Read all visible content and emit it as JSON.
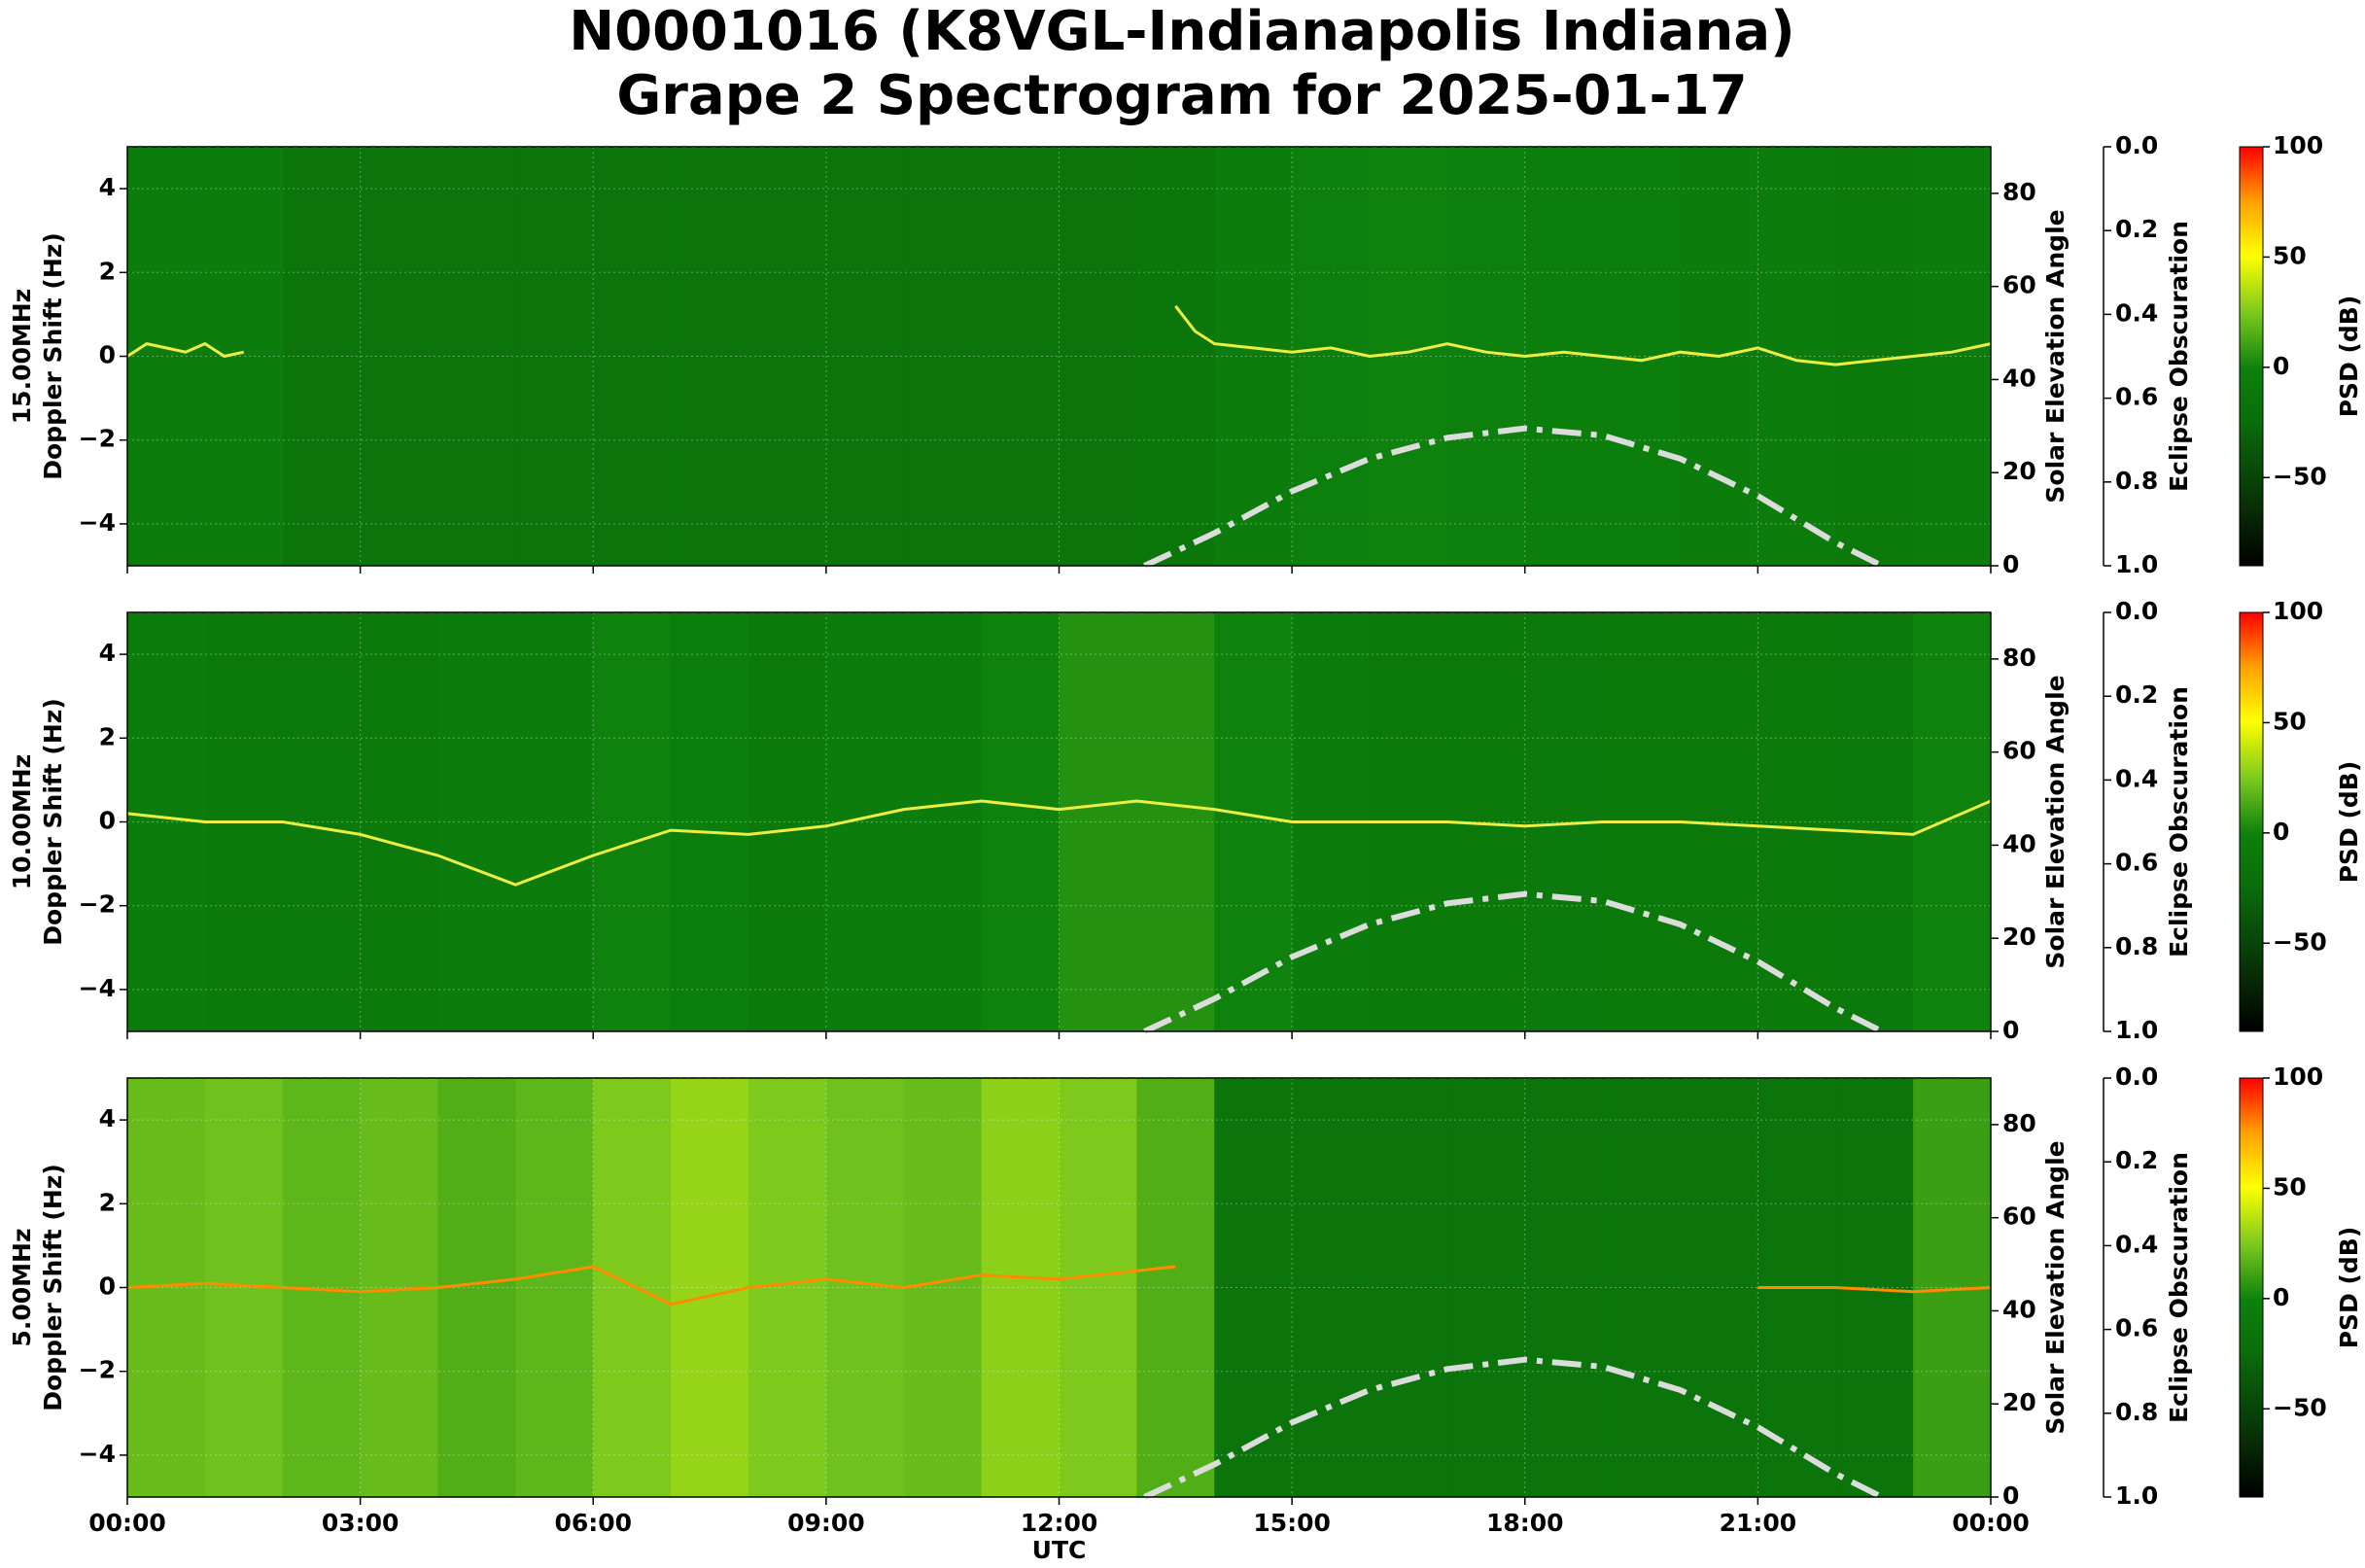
{
  "chart_data": [
    {
      "type": "spectrogram",
      "title": "N0001016 (K8VGL-Indianapolis Indiana)",
      "subtitle": "Grape 2 Spectrogram for 2025-01-17",
      "freq_label": "15.00MHz",
      "ylabel": "Doppler Shift (Hz)",
      "y2label": "Solar Elevation Angle",
      "y3label": "Eclipse Obscuration",
      "clabel": "PSD (dB)",
      "xlim": [
        0,
        24
      ],
      "ylim": [
        -5,
        5
      ],
      "yticks": [
        {
          "value": -4,
          "label": "−4"
        },
        {
          "value": -2,
          "label": "−2"
        },
        0,
        2,
        4
      ],
      "y2lim": [
        0,
        90
      ],
      "y2ticks": [
        0,
        20,
        40,
        60,
        80
      ],
      "y3lim": [
        1,
        0
      ],
      "y3ticks": [
        {
          "value": 0,
          "label": "0.0"
        },
        0.2,
        0.4,
        0.6,
        0.8,
        {
          "value": 1,
          "label": "1.0"
        }
      ],
      "clim": [
        -90,
        100
      ],
      "cticks": [
        {
          "value": -50,
          "label": "−50"
        },
        0,
        50,
        100
      ],
      "psd_bins": [
        0,
        1,
        2,
        3,
        4,
        5,
        6,
        7,
        8,
        9,
        10,
        11,
        12,
        13,
        14,
        15,
        16,
        17,
        18,
        19,
        20,
        21,
        22,
        23,
        24
      ],
      "psd": [
        -5,
        -5,
        -15,
        -15,
        -15,
        -15,
        -15,
        -15,
        -15,
        -15,
        -15,
        -15,
        -15,
        -12,
        -5,
        -2,
        0,
        -2,
        -3,
        -3,
        -5,
        -5,
        -8,
        -5
      ],
      "trace": {
        "color": "#eeee40",
        "x": [
          0,
          0.25,
          0.5,
          0.75,
          1,
          1.25,
          1.5,
          1.6,
          13.5,
          13.75,
          14,
          14.5,
          15,
          15.5,
          16,
          16.5,
          17,
          17.5,
          18,
          18.5,
          19,
          19.5,
          20,
          20.5,
          21,
          21.5,
          22,
          22.5,
          23,
          23.5,
          24
        ],
        "values": [
          0,
          0.3,
          0.2,
          0.1,
          0.3,
          0,
          0.1,
          null,
          1.2,
          0.6,
          0.3,
          0.2,
          0.1,
          0.2,
          0,
          0.1,
          0.3,
          0.1,
          0,
          0.1,
          0,
          -0.1,
          0.1,
          0,
          0.2,
          -0.1,
          -0.2,
          -0.1,
          0,
          0.1,
          0.3
        ]
      },
      "solar_elevation": {
        "color": "#dcdcdc",
        "x": [
          13.1,
          14,
          15,
          16,
          17,
          18,
          19,
          20,
          21,
          22,
          22.6
        ],
        "values": [
          0,
          7,
          16,
          23,
          27.5,
          29.5,
          28,
          23,
          15,
          5,
          0
        ]
      },
      "eclipse_obscuration": {
        "color": "#bbbbbb",
        "x": [
          0,
          24
        ],
        "values": [
          0,
          0
        ]
      }
    },
    {
      "type": "spectrogram",
      "freq_label": "10.00MHz",
      "ylabel": "Doppler Shift (Hz)",
      "y2label": "Solar Elevation Angle",
      "y3label": "Eclipse Obscuration",
      "clabel": "PSD (dB)",
      "xlim": [
        0,
        24
      ],
      "ylim": [
        -5,
        5
      ],
      "yticks": [
        {
          "value": -4,
          "label": "−4"
        },
        {
          "value": -2,
          "label": "−2"
        },
        0,
        2,
        4
      ],
      "y2lim": [
        0,
        90
      ],
      "y2ticks": [
        0,
        20,
        40,
        60,
        80
      ],
      "y3lim": [
        1,
        0
      ],
      "y3ticks": [
        {
          "value": 0,
          "label": "0.0"
        },
        0.2,
        0.4,
        0.6,
        0.8,
        {
          "value": 1,
          "label": "1.0"
        }
      ],
      "clim": [
        -90,
        100
      ],
      "cticks": [
        {
          "value": -50,
          "label": "−50"
        },
        0,
        50,
        100
      ],
      "psd_bins": [
        0,
        1,
        2,
        3,
        4,
        5,
        6,
        7,
        8,
        9,
        10,
        11,
        12,
        13,
        14,
        15,
        16,
        17,
        18,
        19,
        20,
        21,
        22,
        23,
        24
      ],
      "psd": [
        -5,
        -8,
        -10,
        -8,
        -5,
        -5,
        0,
        -3,
        -8,
        -5,
        -5,
        0,
        5,
        5,
        0,
        -5,
        -8,
        -8,
        -10,
        -8,
        -8,
        -8,
        -10,
        0
      ],
      "trace": {
        "color": "#eeee40",
        "x": [
          0,
          1,
          2,
          3,
          4,
          5,
          6,
          7,
          8,
          9,
          10,
          11,
          12,
          13,
          14,
          15,
          16,
          17,
          18,
          19,
          20,
          21,
          22,
          23,
          24
        ],
        "values": [
          0.2,
          0,
          0,
          -0.3,
          -0.8,
          -1.5,
          -0.8,
          -0.2,
          -0.3,
          -0.1,
          0.3,
          0.5,
          0.3,
          0.5,
          0.3,
          0,
          0,
          0,
          -0.1,
          0,
          0,
          -0.1,
          -0.2,
          -0.3,
          0.5
        ]
      },
      "solar_elevation": {
        "color": "#dcdcdc",
        "x": [
          13.1,
          14,
          15,
          16,
          17,
          18,
          19,
          20,
          21,
          22,
          22.6
        ],
        "values": [
          0,
          7,
          16,
          23,
          27.5,
          29.5,
          28,
          23,
          15,
          5,
          0
        ]
      },
      "eclipse_obscuration": {
        "color": "#bbbbbb",
        "x": [
          0,
          24
        ],
        "values": [
          0,
          0
        ]
      }
    },
    {
      "type": "spectrogram",
      "freq_label": "5.00MHz",
      "ylabel": "Doppler Shift (Hz)",
      "y2label": "Solar Elevation Angle",
      "y3label": "Eclipse Obscuration",
      "clabel": "PSD (dB)",
      "xlabel": "UTC",
      "xlim": [
        0,
        24
      ],
      "xticks": [
        {
          "value": 0,
          "label": "00:00"
        },
        {
          "value": 3,
          "label": "03:00"
        },
        {
          "value": 6,
          "label": "06:00"
        },
        {
          "value": 9,
          "label": "09:00"
        },
        {
          "value": 12,
          "label": "12:00"
        },
        {
          "value": 15,
          "label": "15:00"
        },
        {
          "value": 18,
          "label": "18:00"
        },
        {
          "value": 21,
          "label": "21:00"
        },
        {
          "value": 24,
          "label": "00:00"
        }
      ],
      "ylim": [
        -5,
        5
      ],
      "yticks": [
        {
          "value": -4,
          "label": "−4"
        },
        {
          "value": -2,
          "label": "−2"
        },
        0,
        2,
        4
      ],
      "y2lim": [
        0,
        90
      ],
      "y2ticks": [
        0,
        20,
        40,
        60,
        80
      ],
      "y3lim": [
        1,
        0
      ],
      "y3ticks": [
        {
          "value": 0,
          "label": "0.0"
        },
        0.2,
        0.4,
        0.6,
        0.8,
        {
          "value": 1,
          "label": "1.0"
        }
      ],
      "clim": [
        -90,
        100
      ],
      "cticks": [
        {
          "value": -50,
          "label": "−50"
        },
        0,
        50,
        100
      ],
      "psd_bins": [
        0,
        1,
        2,
        3,
        4,
        5,
        6,
        7,
        8,
        9,
        10,
        11,
        12,
        13,
        14,
        15,
        16,
        17,
        18,
        19,
        20,
        21,
        22,
        23,
        24
      ],
      "psd": [
        20,
        22,
        18,
        20,
        15,
        18,
        25,
        30,
        25,
        22,
        20,
        28,
        25,
        15,
        -15,
        -15,
        -15,
        -15,
        -15,
        -15,
        -15,
        -15,
        -15,
        10
      ],
      "trace": {
        "color": "#ff8c00",
        "x": [
          0,
          1,
          2,
          3,
          4,
          5,
          6,
          7,
          8,
          9,
          10,
          11,
          12,
          13,
          13.5,
          14,
          21,
          22,
          23,
          24
        ],
        "values": [
          0,
          0.1,
          0,
          -0.1,
          0,
          0.2,
          0.5,
          -0.4,
          0,
          0.2,
          0,
          0.3,
          0.2,
          0.4,
          0.5,
          null,
          0,
          0,
          -0.1,
          0
        ]
      },
      "solar_elevation": {
        "color": "#dcdcdc",
        "x": [
          13.1,
          14,
          15,
          16,
          17,
          18,
          19,
          20,
          21,
          22,
          22.6
        ],
        "values": [
          0,
          7,
          16,
          23,
          27.5,
          29.5,
          28,
          23,
          15,
          5,
          0
        ]
      },
      "eclipse_obscuration": {
        "color": "#bbbbbb",
        "x": [
          0,
          24
        ],
        "values": [
          0,
          0
        ]
      }
    }
  ]
}
